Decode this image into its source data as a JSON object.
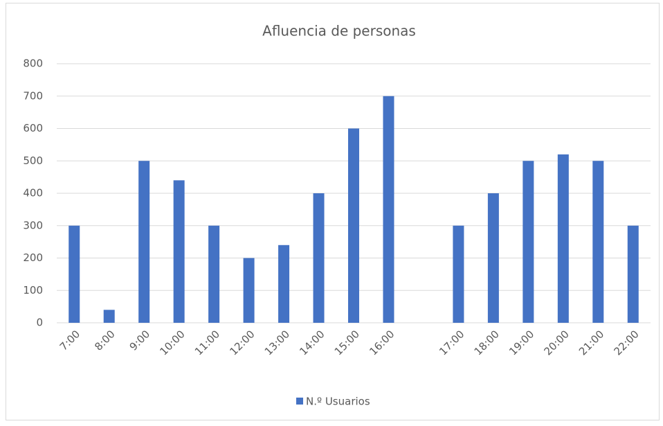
{
  "chart_data": {
    "type": "bar",
    "title": "Afluencia de personas",
    "categories": [
      "7:00",
      "8:00",
      "9:00",
      "10:00",
      "11:00",
      "12:00",
      "13:00",
      "14:00",
      "15:00",
      "16:00",
      null,
      "17:00",
      "18:00",
      "19:00",
      "20:00",
      "21:00",
      "22:00"
    ],
    "series": [
      {
        "name": "N.º Usuarios",
        "color": "#4472c4",
        "values": [
          300,
          40,
          500,
          440,
          300,
          200,
          240,
          400,
          600,
          700,
          null,
          300,
          400,
          500,
          520,
          500,
          300
        ]
      }
    ],
    "ylim": [
      0,
      800
    ],
    "yticks": [
      0,
      100,
      200,
      300,
      400,
      500,
      600,
      700,
      800
    ],
    "grid": true,
    "legend": "bottom"
  }
}
